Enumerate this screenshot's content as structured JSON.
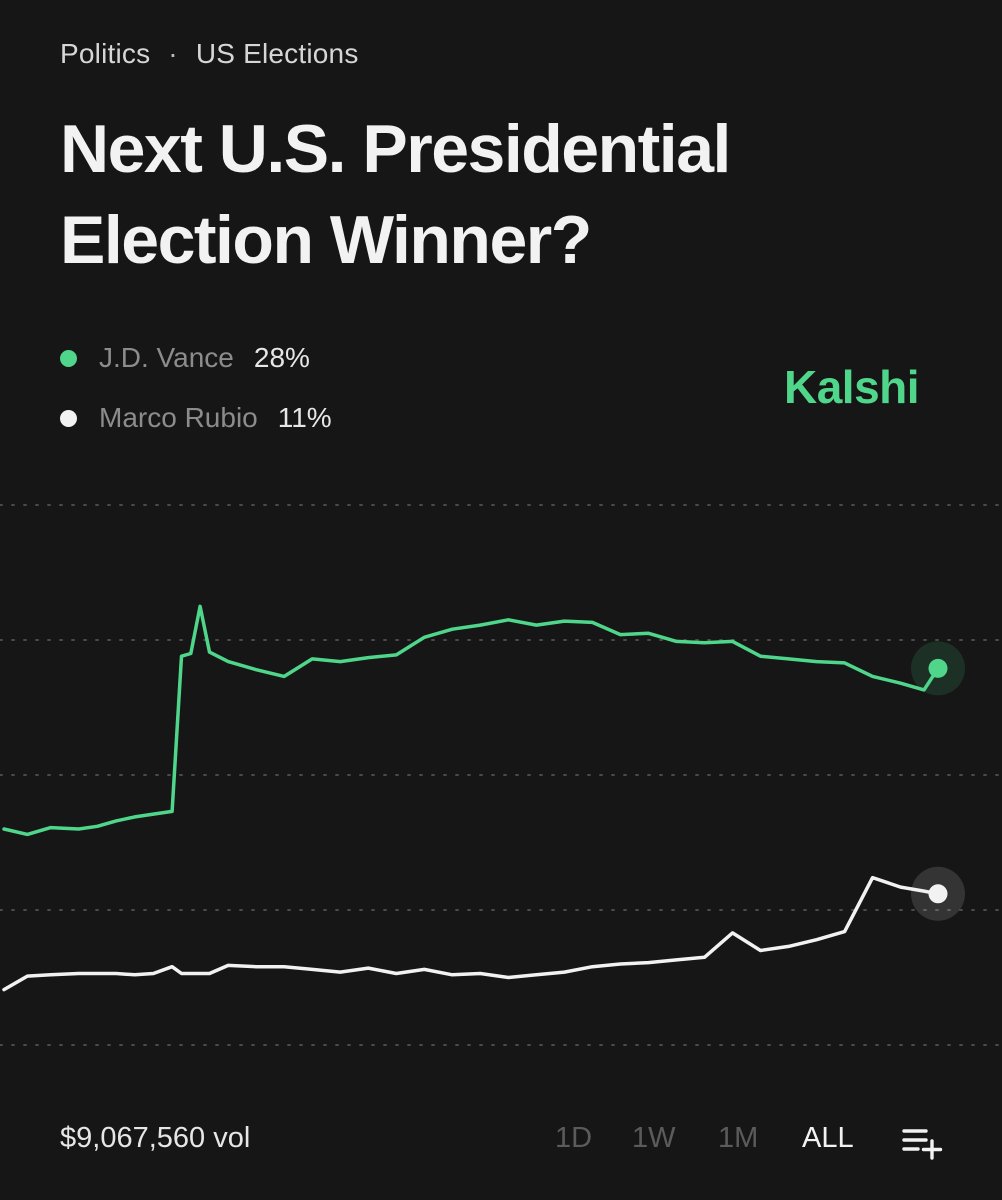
{
  "breadcrumb": {
    "category": "Politics",
    "separator": "·",
    "subcategory": "US Elections"
  },
  "title": "Next U.S. Presidential Election Winner?",
  "legend": [
    {
      "name": "J.D. Vance",
      "value": "28%",
      "color": "#4fd68a"
    },
    {
      "name": "Marco Rubio",
      "value": "11%",
      "color": "#f2f2f2"
    }
  ],
  "brand": "Kalshi",
  "footer": {
    "volume": "$9,067,560 vol",
    "ranges": [
      "1D",
      "1W",
      "1M",
      "ALL"
    ],
    "active_range": "ALL",
    "add_icon": "list-add-icon"
  },
  "chart_data": {
    "type": "line",
    "title": "",
    "xlabel": "",
    "ylabel": "",
    "x": [
      0,
      0.025,
      0.05,
      0.08,
      0.1,
      0.12,
      0.14,
      0.16,
      0.18,
      0.19,
      0.2,
      0.21,
      0.22,
      0.24,
      0.27,
      0.3,
      0.33,
      0.36,
      0.39,
      0.42,
      0.45,
      0.48,
      0.51,
      0.54,
      0.57,
      0.6,
      0.63,
      0.66,
      0.69,
      0.72,
      0.75,
      0.78,
      0.81,
      0.84,
      0.87,
      0.9,
      0.93,
      0.96,
      0.985,
      1
    ],
    "ylim": [
      0,
      40
    ],
    "grid": true,
    "gridlines": 5,
    "series": [
      {
        "name": "J.D. Vance",
        "color": "#4fd68a",
        "values": [
          16,
          15.6,
          16.1,
          16,
          16.2,
          16.6,
          16.9,
          17.1,
          17.3,
          28.8,
          29,
          32.5,
          29.1,
          28.4,
          27.8,
          27.3,
          28.6,
          28.4,
          28.7,
          28.9,
          30.2,
          30.8,
          31.1,
          31.5,
          31.1,
          31.4,
          31.3,
          30.4,
          30.5,
          29.9,
          29.8,
          29.9,
          28.8,
          28.6,
          28.4,
          28.3,
          27.3,
          26.8,
          26.3,
          27.9
        ]
      },
      {
        "name": "Marco Rubio",
        "color": "#f2f2f2",
        "values": [
          4.1,
          5.1,
          5.2,
          5.3,
          5.3,
          5.3,
          5.2,
          5.3,
          5.8,
          5.3,
          5.3,
          5.3,
          5.3,
          5.9,
          5.8,
          5.8,
          5.6,
          5.4,
          5.7,
          5.3,
          5.6,
          5.2,
          5.3,
          5.0,
          5.2,
          5.4,
          5.8,
          6.0,
          6.1,
          6.3,
          6.5,
          8.3,
          7.0,
          7.3,
          7.8,
          8.4,
          12.4,
          11.7,
          11.4,
          11.2
        ]
      }
    ]
  }
}
